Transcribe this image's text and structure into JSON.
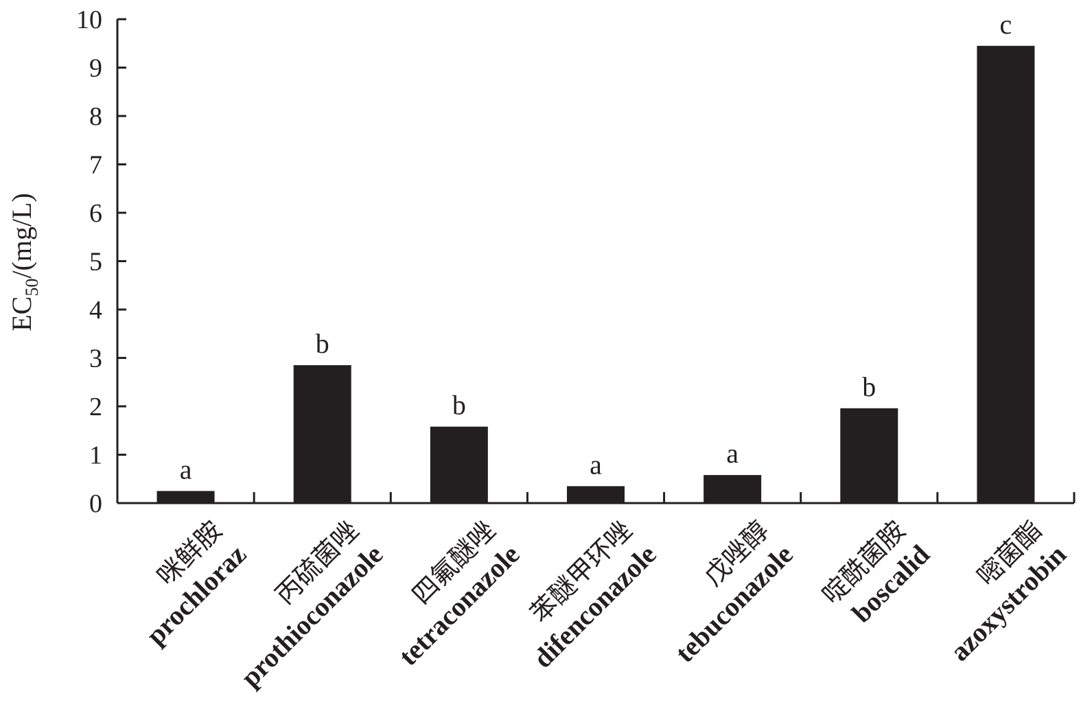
{
  "chart_data": {
    "type": "bar",
    "title": "",
    "xlabel": "",
    "ylabel": {
      "main": "EC",
      "subscript": "50",
      "suffix": "/(mg/L)"
    },
    "ylim": [
      0,
      10
    ],
    "yticks": [
      "0",
      "1",
      "2",
      "3",
      "4",
      "5",
      "6",
      "7",
      "8",
      "9",
      "10"
    ],
    "grid": false,
    "categories": [
      {
        "cn": "咪鲜胺",
        "en": "prochloraz"
      },
      {
        "cn": "丙硫菌唑",
        "en": "prothioconazole"
      },
      {
        "cn": "四氟醚唑",
        "en": "tetraconazole"
      },
      {
        "cn": "苯醚甲环唑",
        "en": "difenconazole"
      },
      {
        "cn": "戊唑醇",
        "en": "tebuconazole"
      },
      {
        "cn": "啶酰菌胺",
        "en": "boscalid"
      },
      {
        "cn": "嘧菌酯",
        "en": "azoxystrobin"
      }
    ],
    "values": [
      0.25,
      2.85,
      1.58,
      0.35,
      0.58,
      1.96,
      9.45
    ],
    "significance": [
      "a",
      "b",
      "b",
      "a",
      "a",
      "b",
      "c"
    ],
    "bar_color": "#231f20"
  }
}
